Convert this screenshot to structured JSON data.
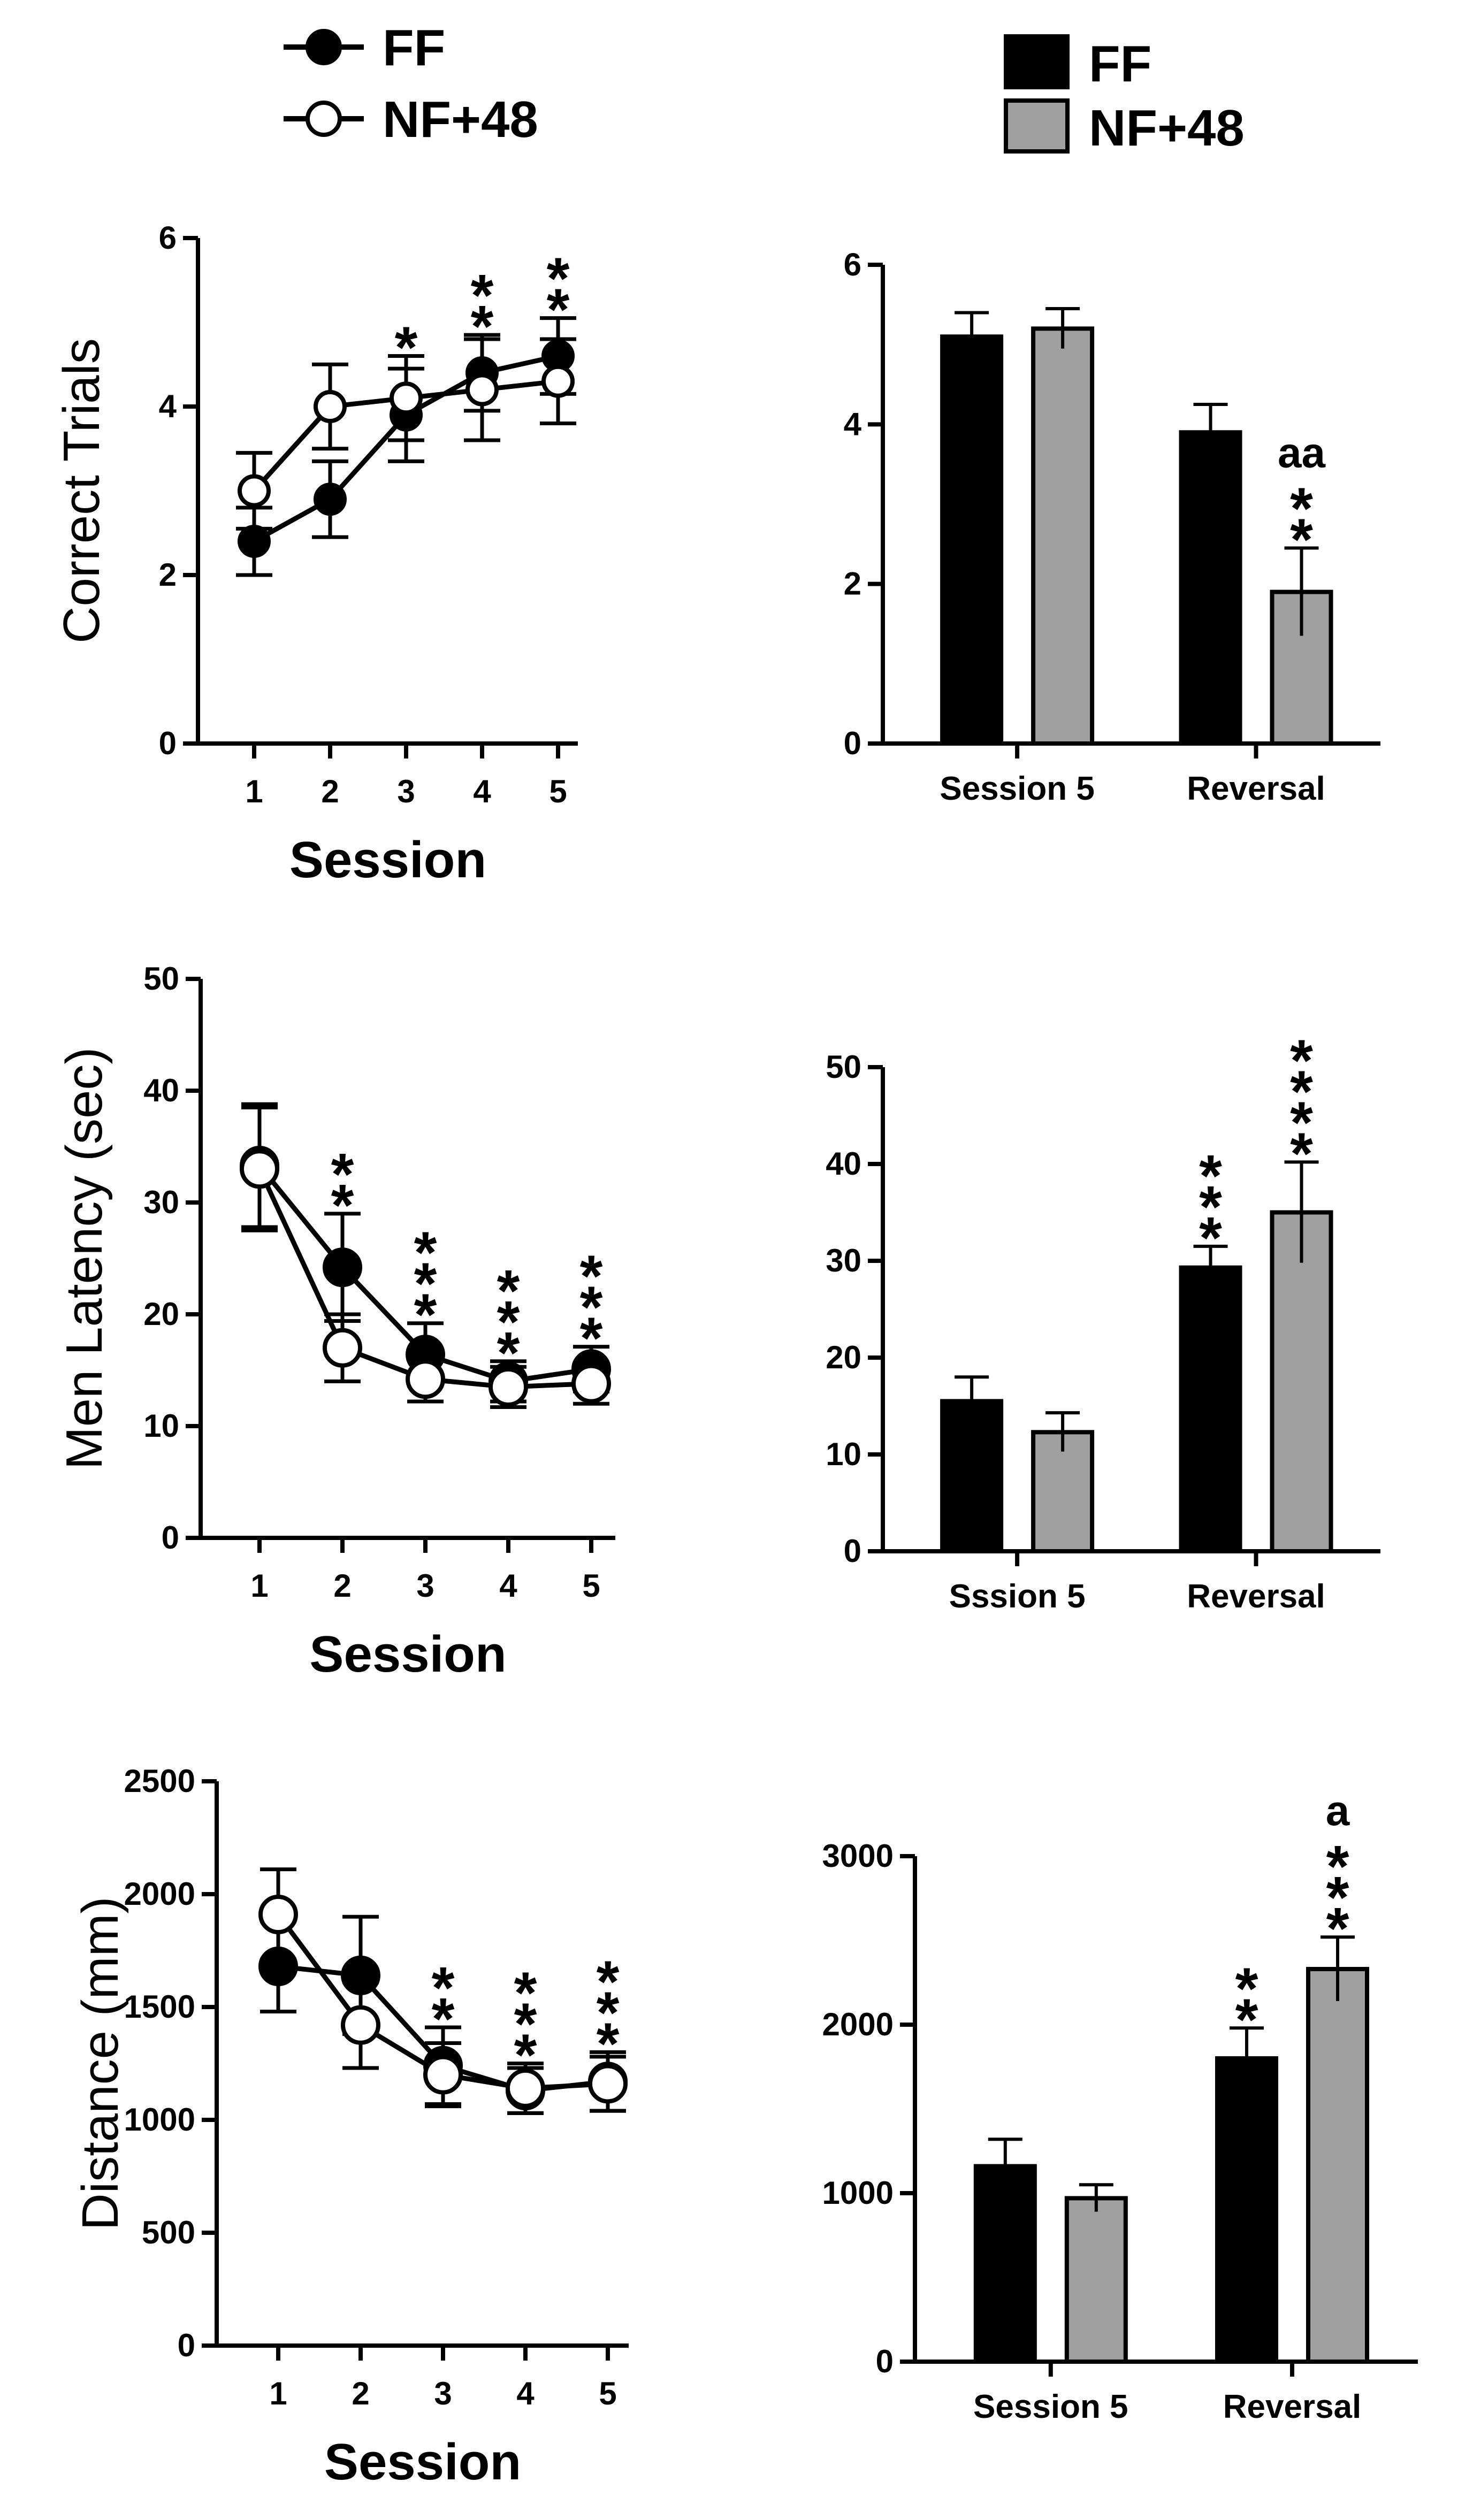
{
  "legend_line": {
    "items": [
      {
        "label": "FF",
        "marker": "filled-circle"
      },
      {
        "label": "NF+48",
        "marker": "open-circle"
      }
    ]
  },
  "legend_bar": {
    "items": [
      {
        "label": "FF",
        "color": "#000000"
      },
      {
        "label": "NF+48",
        "color": "#a0a0a0"
      }
    ]
  },
  "chart_data": [
    {
      "id": "line1",
      "type": "line",
      "title": "",
      "xlabel": "Session",
      "ylabel": "Correct Trials",
      "x": [
        1,
        2,
        3,
        4,
        5
      ],
      "xticks": [
        "1",
        "2",
        "3",
        "4",
        "5"
      ],
      "ylim": [
        0,
        6
      ],
      "yticks": [
        "0",
        "2",
        "4",
        "6"
      ],
      "series": [
        {
          "name": "FF",
          "marker": "filled",
          "values": [
            2.4,
            2.9,
            3.9,
            4.4,
            4.6
          ],
          "errors": [
            0.4,
            0.45,
            0.55,
            0.45,
            0.45
          ]
        },
        {
          "name": "NF+48",
          "marker": "open",
          "values": [
            3.0,
            4.0,
            4.1,
            4.2,
            4.3
          ],
          "errors": [
            0.45,
            0.5,
            0.5,
            0.6,
            0.5
          ]
        }
      ],
      "annotations": [
        {
          "x": 3,
          "text": "*"
        },
        {
          "x": 4,
          "text": "**"
        },
        {
          "x": 5,
          "text": "**"
        }
      ]
    },
    {
      "id": "bar1",
      "type": "bar",
      "title": "",
      "xlabel": "",
      "ylabel": "",
      "categories": [
        "Session 5",
        "Reversal"
      ],
      "ylim": [
        0,
        6
      ],
      "yticks": [
        "0",
        "2",
        "4",
        "6"
      ],
      "series": [
        {
          "name": "FF",
          "values": [
            5.1,
            3.9
          ],
          "errors": [
            0.3,
            0.35
          ]
        },
        {
          "name": "NF+48",
          "values": [
            5.2,
            1.9
          ],
          "errors": [
            0.25,
            0.55
          ]
        }
      ],
      "annotations": [
        {
          "category": 1,
          "series": 1,
          "text": "**",
          "letter": "aa"
        }
      ]
    },
    {
      "id": "line2",
      "type": "line",
      "title": "",
      "xlabel": "Session",
      "ylabel": "Men Latency (sec)",
      "x": [
        1,
        2,
        3,
        4,
        5
      ],
      "xticks": [
        "1",
        "2",
        "3",
        "4",
        "5"
      ],
      "ylim": [
        0,
        50
      ],
      "yticks": [
        "0",
        "10",
        "20",
        "30",
        "40",
        "50"
      ],
      "series": [
        {
          "name": "FF",
          "marker": "filled",
          "values": [
            33.3,
            24.2,
            16.4,
            14.0,
            15.1
          ],
          "errors": [
            5.5,
            4.8,
            2.8,
            1.8,
            2.0
          ]
        },
        {
          "name": "NF+48",
          "marker": "open",
          "values": [
            33.0,
            17.0,
            14.2,
            13.5,
            13.8
          ],
          "errors": [
            5.5,
            3.0,
            2.0,
            1.8,
            1.8
          ]
        }
      ],
      "annotations": [
        {
          "x": 2,
          "text": "**"
        },
        {
          "x": 3,
          "text": "***"
        },
        {
          "x": 4,
          "text": "***"
        },
        {
          "x": 5,
          "text": "***"
        }
      ]
    },
    {
      "id": "bar2",
      "type": "bar",
      "title": "",
      "xlabel": "",
      "ylabel": "",
      "categories": [
        "Sssion 5",
        "Reversal"
      ],
      "ylim": [
        0,
        50
      ],
      "yticks": [
        "0",
        "10",
        "20",
        "30",
        "40",
        "50"
      ],
      "series": [
        {
          "name": "FF",
          "values": [
            15.5,
            29.3
          ],
          "errors": [
            2.5,
            2.2
          ]
        },
        {
          "name": "NF+48",
          "values": [
            12.3,
            35.0
          ],
          "errors": [
            2.0,
            5.2
          ]
        }
      ],
      "annotations": [
        {
          "category": 1,
          "series": 0,
          "text": "***"
        },
        {
          "category": 1,
          "series": 1,
          "text": "****"
        }
      ]
    },
    {
      "id": "line3",
      "type": "line",
      "title": "",
      "xlabel": "Session",
      "ylabel": "Distance (mm)",
      "x": [
        1,
        2,
        3,
        4,
        5
      ],
      "xticks": [
        "1",
        "2",
        "3",
        "4",
        "5"
      ],
      "ylim": [
        0,
        2500
      ],
      "yticks": [
        "0",
        "500",
        "1000",
        "1500",
        "2000",
        "2500"
      ],
      "series": [
        {
          "name": "FF",
          "marker": "filled",
          "values": [
            1680,
            1640,
            1240,
            1130,
            1170
          ],
          "errors": [
            200,
            260,
            170,
            100,
            130
          ]
        },
        {
          "name": "NF+48",
          "marker": "open",
          "values": [
            1910,
            1420,
            1200,
            1140,
            1160
          ],
          "errors": [
            200,
            190,
            140,
            110,
            120
          ]
        }
      ],
      "annotations": [
        {
          "x": 3,
          "text": "**"
        },
        {
          "x": 4,
          "text": "***"
        },
        {
          "x": 5,
          "text": "***"
        }
      ]
    },
    {
      "id": "bar3",
      "type": "bar",
      "title": "",
      "xlabel": "",
      "ylabel": "",
      "categories": [
        "Session 5",
        "Reversal"
      ],
      "ylim": [
        0,
        3000
      ],
      "yticks": [
        "0",
        "1000",
        "2000",
        "3000"
      ],
      "series": [
        {
          "name": "FF",
          "values": [
            1160,
            1800
          ],
          "errors": [
            160,
            180
          ]
        },
        {
          "name": "NF+48",
          "values": [
            970,
            2330
          ],
          "errors": [
            80,
            190
          ]
        }
      ],
      "annotations": [
        {
          "category": 1,
          "series": 0,
          "text": "**"
        },
        {
          "category": 1,
          "series": 1,
          "text": "***",
          "letter": "a"
        }
      ]
    }
  ]
}
